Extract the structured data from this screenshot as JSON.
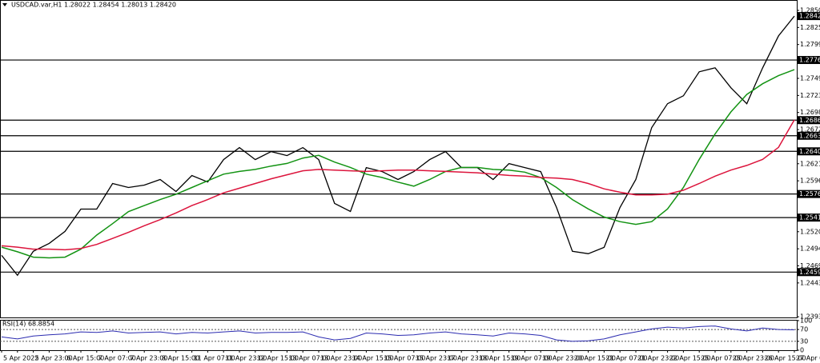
{
  "chart_data": {
    "type": "line",
    "title": "USDCAD.var,H1  1.28022 1.28454 1.28013 1.28420",
    "categories": [
      "5 Apr 2022",
      null,
      "5 Apr 23:00",
      null,
      "6 Apr 15:00",
      null,
      "7 Apr 07:00",
      null,
      "7 Apr 23:00",
      null,
      "8 Apr 15:00",
      null,
      "11 Apr 07:00",
      null,
      "11 Apr 23:00",
      null,
      "12 Apr 15:00",
      null,
      "13 Apr 07:00",
      null,
      "13 Apr 23:00",
      null,
      "14 Apr 15:00",
      null,
      "15 Apr 07:00",
      null,
      "15 Apr 23:00",
      null,
      "17 Apr 23:00",
      null,
      "18 Apr 15:00",
      null,
      "19 Apr 07:00",
      null,
      "19 Apr 23:00",
      null,
      "20 Apr 15:00",
      null,
      "21 Apr 07:00",
      null,
      "21 Apr 23:00",
      null,
      "22 Apr 15:00",
      null,
      "25 Apr 07:00",
      null,
      "25 Apr 23:00",
      null,
      "26 Apr 15:00",
      null,
      "27 Apr 07:00"
    ],
    "series": [
      {
        "color": "#000000",
        "values": [
          1.24847,
          1.24549,
          1.24907,
          1.25026,
          1.25205,
          1.25538,
          1.25538,
          1.2592,
          1.2586,
          1.25896,
          1.25979,
          1.258,
          1.26039,
          1.25943,
          1.26277,
          1.26456,
          1.26277,
          1.26396,
          1.26337,
          1.26456,
          1.26277,
          1.25622,
          1.25502,
          1.26158,
          1.26098,
          1.25979,
          1.26098,
          1.26277,
          1.26396,
          1.26158,
          1.26158,
          1.25979,
          1.26217,
          1.26158,
          1.26098,
          1.25562,
          1.24907,
          1.24871,
          1.24966,
          1.25562,
          1.25979,
          1.26754,
          1.27111,
          1.2723,
          1.27588,
          1.27647,
          1.27349,
          1.27111,
          1.27647,
          1.28124,
          1.2842
        ]
      },
      {
        "color": "#139313",
        "values": [
          1.2497,
          1.249,
          1.2482,
          1.2481,
          1.2482,
          1.2494,
          1.2515,
          1.2532,
          1.255,
          1.2559,
          1.2568,
          1.2576,
          1.2586,
          1.2596,
          1.2606,
          1.261,
          1.2613,
          1.2618,
          1.2622,
          1.263,
          1.2634,
          1.2624,
          1.2616,
          1.2606,
          1.2601,
          1.2594,
          1.2588,
          1.2598,
          1.261,
          1.2616,
          1.2616,
          1.2613,
          1.2612,
          1.2609,
          1.2601,
          1.2586,
          1.2568,
          1.2554,
          1.2542,
          1.2535,
          1.2531,
          1.2535,
          1.2554,
          1.2586,
          1.2628,
          1.2666,
          1.2699,
          1.2725,
          1.2741,
          1.2753,
          1.2762
        ]
      },
      {
        "color": "#dc143c",
        "values": [
          1.2499,
          1.2497,
          1.2494,
          1.2494,
          1.2493,
          1.2495,
          1.2501,
          1.251,
          1.2519,
          1.2529,
          1.2538,
          1.2548,
          1.2559,
          1.2568,
          1.2578,
          1.2585,
          1.2592,
          1.2599,
          1.2605,
          1.2611,
          1.2613,
          1.2612,
          1.2611,
          1.261,
          1.2611,
          1.2612,
          1.2612,
          1.2611,
          1.261,
          1.2609,
          1.2608,
          1.2606,
          1.2604,
          1.2603,
          1.2601,
          1.26,
          1.2598,
          1.2592,
          1.2584,
          1.2579,
          1.2575,
          1.2575,
          1.2576,
          1.2582,
          1.2592,
          1.2603,
          1.2612,
          1.2619,
          1.2628,
          1.2646,
          1.2687
        ]
      }
    ],
    "ylim": [
      1.2392,
      1.2866
    ],
    "yticks": [
      1.28505,
      {
        "value": 1.2825,
        "label": "1.28250"
      },
      1.27995,
      {
        "value": 1.2749,
        "label": "1.27490"
      },
      1.27235,
      {
        "value": 1.2698,
        "label": "1.26980"
      },
      1.26725,
      1.26215,
      {
        "value": 1.2596,
        "label": "1.25960"
      },
      {
        "value": 1.252,
        "label": "1.25200"
      },
      1.24945,
      {
        "value": 1.2469,
        "label": "1.24690"
      },
      1.24435,
      {
        "value": 1.2393,
        "label": "1.23930"
      }
    ],
    "levels": [
      1.27764,
      1.26866,
      1.26633,
      {
        "value": 1.264,
        "label": "1.26400"
      },
      1.25763,
      1.25411,
      1.24597
    ],
    "price_label": {
      "value": 1.2842,
      "label": "1.28420"
    },
    "rsi": {
      "title": "RSI(14) 68.8854",
      "color": "#2b2bb0",
      "values": [
        45,
        38,
        48,
        52,
        55,
        62,
        60,
        65,
        58,
        60,
        62,
        55,
        60,
        58,
        62,
        65,
        58,
        60,
        60,
        62,
        45,
        35,
        40,
        58,
        55,
        50,
        52,
        58,
        62,
        55,
        52,
        48,
        58,
        55,
        50,
        35,
        30,
        32,
        38,
        52,
        62,
        72,
        78,
        75,
        80,
        82,
        72,
        65,
        75,
        70,
        68.8854
      ],
      "ylim": [
        0,
        100
      ],
      "yticks": [
        100,
        70,
        30,
        0
      ]
    }
  }
}
